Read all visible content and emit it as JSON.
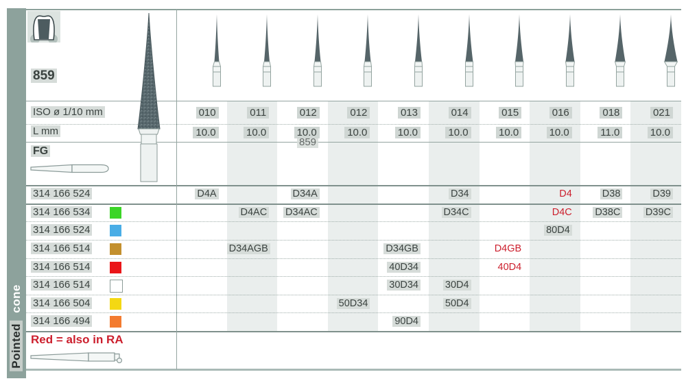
{
  "page_header": {
    "figure_number": "859",
    "ghost_artifact": "859"
  },
  "sidebar": {
    "word1": "Pointed",
    "word2": "cone"
  },
  "spec_rows": {
    "iso_label": "ISO ø 1/10 mm",
    "length_label": "L mm",
    "shank_label": "FG"
  },
  "columns": {
    "iso_values": [
      "010",
      "011",
      "012",
      "012",
      "013",
      "014",
      "015",
      "016",
      "018",
      "021"
    ],
    "length_values": [
      "10.0",
      "10.0",
      "10.0",
      "10.0",
      "10.0",
      "10.0",
      "10.0",
      "10.0",
      "11.0",
      "10.0"
    ]
  },
  "product_rows": [
    {
      "order_code": "314 166 524",
      "grit_color": null,
      "cells": [
        {
          "col": 0,
          "code": "D4A"
        },
        {
          "col": 2,
          "code": "D34A"
        },
        {
          "col": 5,
          "code": "D34"
        },
        {
          "col": 7,
          "code": "D4",
          "red": true
        },
        {
          "col": 8,
          "code": "D38"
        },
        {
          "col": 9,
          "code": "D39"
        }
      ]
    },
    {
      "order_code": "314 166 534",
      "grit_color": "#3bd527",
      "cells": [
        {
          "col": 1,
          "code": "D4AC"
        },
        {
          "col": 2,
          "code": "D34AC"
        },
        {
          "col": 5,
          "code": "D34C"
        },
        {
          "col": 7,
          "code": "D4C",
          "red": true
        },
        {
          "col": 8,
          "code": "D38C"
        },
        {
          "col": 9,
          "code": "D39C"
        }
      ]
    },
    {
      "order_code": "314 166 524",
      "grit_color": "#49ade6",
      "cells": [
        {
          "col": 7,
          "code": "80D4"
        }
      ]
    },
    {
      "order_code": "314 166 514",
      "grit_color": "#c3902e",
      "cells": [
        {
          "col": 1,
          "code": "D34AGB"
        },
        {
          "col": 4,
          "code": "D34GB"
        },
        {
          "col": 6,
          "code": "D4GB",
          "red": true
        }
      ]
    },
    {
      "order_code": "314 166 514",
      "grit_color": "#ea1518",
      "cells": [
        {
          "col": 4,
          "code": "40D34"
        },
        {
          "col": 6,
          "code": "40D4",
          "red": true
        }
      ]
    },
    {
      "order_code": "314 166 514",
      "grit_color": "#ffffff",
      "grit_outline": true,
      "cells": [
        {
          "col": 4,
          "code": "30D34"
        },
        {
          "col": 5,
          "code": "30D4"
        }
      ]
    },
    {
      "order_code": "314 166 504",
      "grit_color": "#f4d813",
      "cells": [
        {
          "col": 3,
          "code": "50D34"
        },
        {
          "col": 5,
          "code": "50D4"
        }
      ]
    },
    {
      "order_code": "314 166 494",
      "grit_color": "#f37b2f",
      "cells": [
        {
          "col": 4,
          "code": "90D4"
        }
      ]
    }
  ],
  "footer": {
    "note": "Red = also in RA"
  },
  "colors": {
    "accent_red": "#cc1f2d",
    "sidebar_bg": "#8da29c",
    "bur_dark": "#566569"
  }
}
